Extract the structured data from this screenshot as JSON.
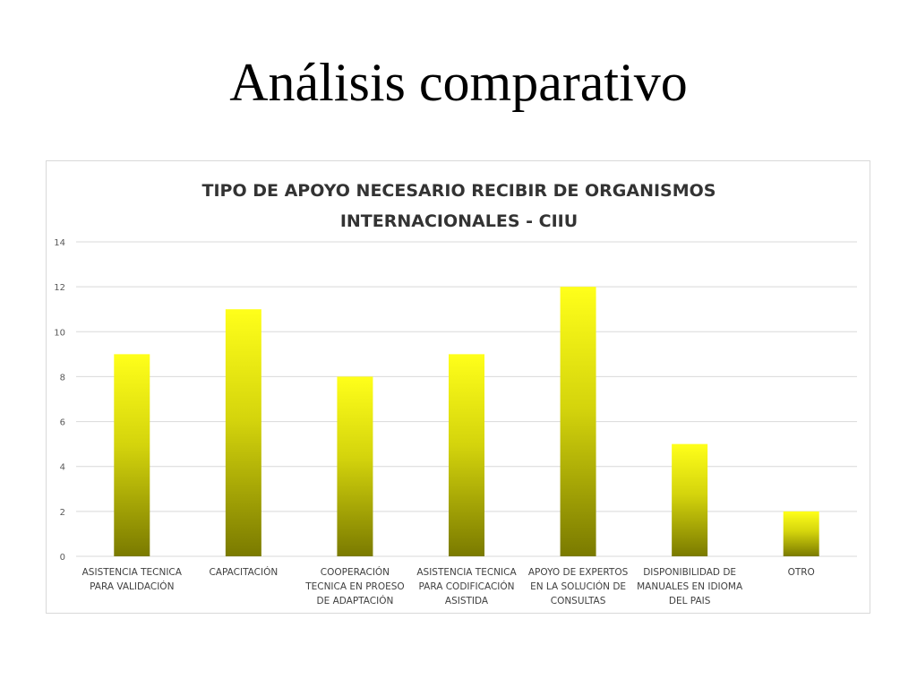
{
  "slide": {
    "title": "Análisis comparativo"
  },
  "chart_data": {
    "type": "bar",
    "title_lines": [
      "TIPO DE APOYO NECESARIO RECIBIR DE ORGANISMOS",
      "INTERNACIONALES - CIIU"
    ],
    "categories": [
      [
        "ASISTENCIA TECNICA",
        "PARA VALIDACIÓN"
      ],
      [
        "CAPACITACIÓN"
      ],
      [
        "COOPERACIÓN",
        "TECNICA EN PROESO",
        "DE ADAPTACIÓN"
      ],
      [
        "ASISTENCIA TECNICA",
        "PARA CODIFICACIÓN",
        "ASISTIDA"
      ],
      [
        "APOYO DE EXPERTOS",
        "EN LA SOLUCIÓN DE",
        "CONSULTAS"
      ],
      [
        "DISPONIBILIDAD DE",
        "MANUALES EN IDIOMA",
        "DEL PAIS"
      ],
      [
        "OTRO"
      ]
    ],
    "values": [
      9,
      11,
      8,
      9,
      12,
      5,
      2
    ],
    "ylim": [
      0,
      14
    ],
    "yticks": [
      "0",
      "2",
      "4",
      "6",
      "8",
      "10",
      "12",
      "14"
    ],
    "grid": true,
    "legend": "none",
    "colors": {
      "bar_top": "#ffff1a",
      "bar_bottom": "#7a7a00",
      "grid": "#d9d9d9",
      "axis_text": "#595959"
    }
  }
}
